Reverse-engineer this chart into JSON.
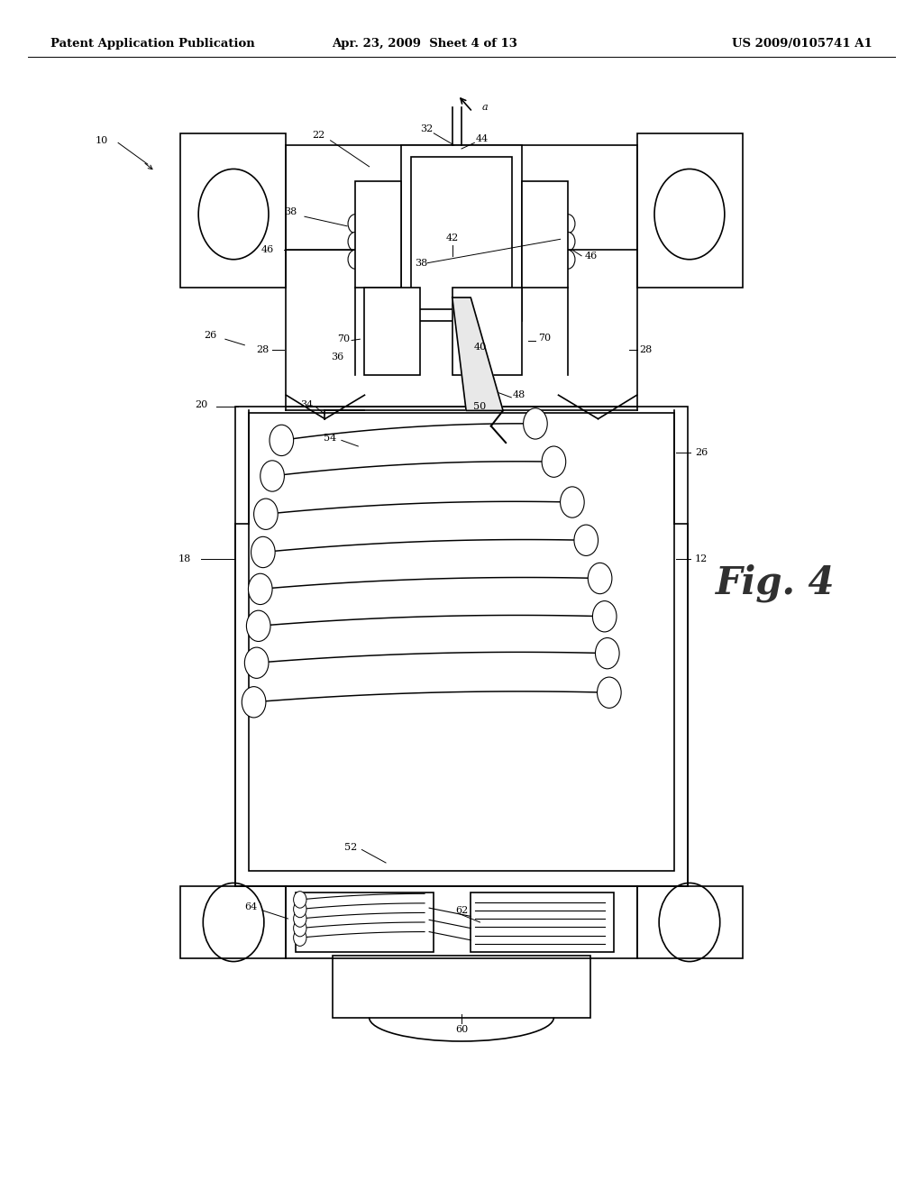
{
  "header_left": "Patent Application Publication",
  "header_mid": "Apr. 23, 2009  Sheet 4 of 13",
  "header_right": "US 2009/0105741 A1",
  "fig_label": "Fig. 4",
  "bg": "#ffffff",
  "lc": "#000000",
  "lw": 1.2
}
